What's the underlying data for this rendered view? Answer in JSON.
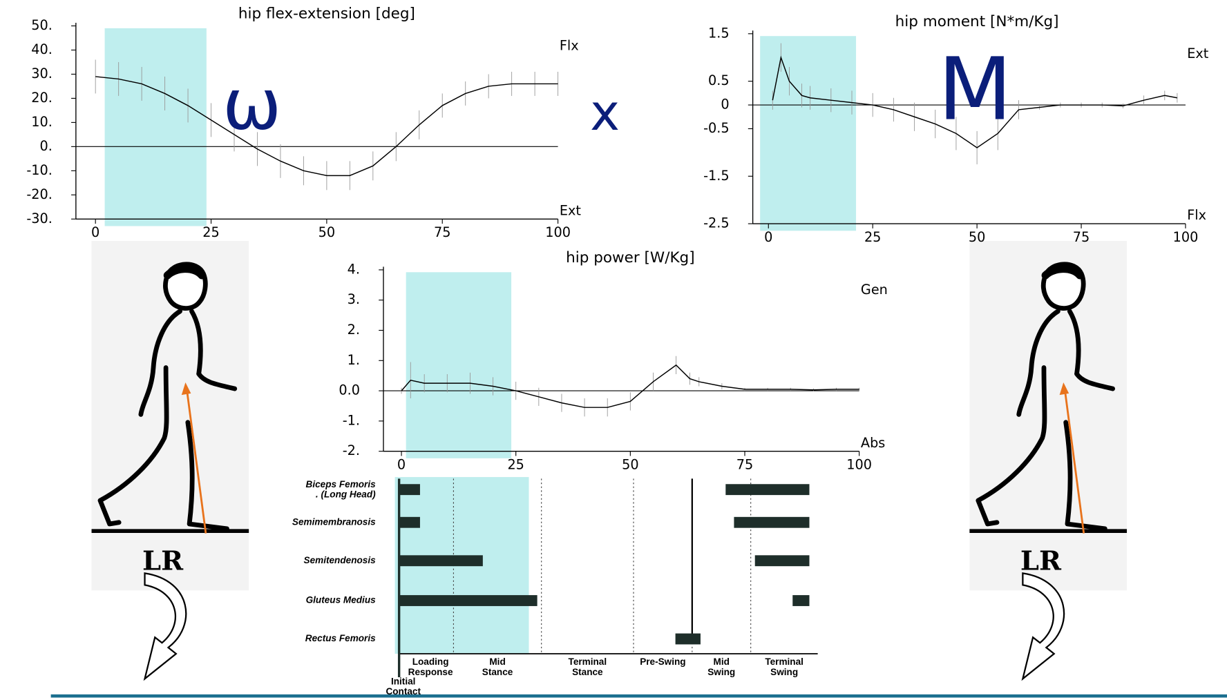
{
  "chart_data": [
    {
      "type": "line",
      "title": "hip flex-extension [deg]",
      "xlim": [
        0,
        100
      ],
      "ylim": [
        -30,
        50
      ],
      "xticks": [
        0,
        25,
        50,
        75,
        100
      ],
      "yticks": [
        {
          "value": 50,
          "label": "50."
        },
        {
          "value": 40,
          "label": "40."
        },
        {
          "value": 30,
          "label": "30."
        },
        {
          "value": 20,
          "label": "20."
        },
        {
          "value": 10,
          "label": "10."
        },
        {
          "value": 0,
          "label": "0."
        },
        {
          "value": -10,
          "label": "-10."
        },
        {
          "value": -20,
          "label": "-20."
        },
        {
          "value": -30,
          "label": "-30."
        }
      ],
      "x": [
        0,
        5,
        10,
        15,
        20,
        25,
        30,
        35,
        40,
        45,
        50,
        55,
        60,
        65,
        70,
        75,
        80,
        85,
        90,
        95,
        100
      ],
      "series": [
        {
          "color": "#000000",
          "values": [
            29,
            28,
            26,
            22,
            17,
            11,
            5,
            -1,
            -6,
            -10,
            -12,
            -12,
            -8,
            0,
            9,
            17,
            22,
            25,
            26,
            26,
            26
          ],
          "errors": [
            7,
            7,
            7,
            7,
            7,
            7,
            7,
            7,
            7,
            6,
            6,
            6,
            6,
            6,
            6,
            5,
            5,
            5,
            5,
            5,
            5
          ]
        }
      ],
      "highlight": [
        2,
        24
      ],
      "highlight_color": "#bfeeee",
      "label_top": "Flx",
      "label_bottom": "Ext"
    },
    {
      "type": "line",
      "title": "hip moment [N*m/Kg]",
      "xlim": [
        0,
        100
      ],
      "ylim": [
        -2.5,
        1.5
      ],
      "xticks": [
        0,
        25,
        50,
        75,
        100
      ],
      "yticks": [
        1.5,
        0.5,
        0,
        -0.5,
        -1.5,
        -2.5
      ],
      "x": [
        1,
        3,
        5,
        8,
        10,
        15,
        20,
        25,
        30,
        35,
        40,
        45,
        50,
        55,
        60,
        65,
        70,
        75,
        80,
        85,
        90,
        95,
        98
      ],
      "series": [
        {
          "color": "#000000",
          "values": [
            0.1,
            1.0,
            0.5,
            0.2,
            0.15,
            0.1,
            0.05,
            0,
            -0.1,
            -0.25,
            -0.4,
            -0.6,
            -0.9,
            -0.6,
            -0.1,
            -0.05,
            0,
            0,
            0,
            -0.02,
            0.1,
            0.2,
            0.15
          ],
          "errors": [
            0.2,
            0.3,
            0.3,
            0.25,
            0.25,
            0.25,
            0.25,
            0.25,
            0.25,
            0.3,
            0.3,
            0.35,
            0.35,
            0.35,
            0.2,
            0.05,
            0.05,
            0.05,
            0.05,
            0.05,
            0.1,
            0.1,
            0.1
          ]
        }
      ],
      "highlight": [
        -2,
        21
      ],
      "highlight_color": "#bfeeee",
      "label_top": "Ext",
      "label_bottom": "Flx"
    },
    {
      "type": "line",
      "title": "hip power [W/Kg]",
      "xlim": [
        0,
        100
      ],
      "ylim": [
        -2,
        4
      ],
      "xticks": [
        0,
        25,
        50,
        75,
        100
      ],
      "yticks": [
        {
          "value": 4,
          "label": "4."
        },
        {
          "value": 3,
          "label": "3."
        },
        {
          "value": 2,
          "label": "2."
        },
        {
          "value": 1,
          "label": "1."
        },
        {
          "value": 0,
          "label": "0.0"
        },
        {
          "value": -1,
          "label": "-1."
        },
        {
          "value": -2,
          "label": "-2."
        }
      ],
      "x": [
        0,
        2,
        5,
        10,
        15,
        20,
        25,
        30,
        35,
        40,
        45,
        50,
        55,
        60,
        63,
        65,
        70,
        75,
        80,
        85,
        90,
        95,
        100
      ],
      "series": [
        {
          "color": "#000000",
          "values": [
            0,
            0.35,
            0.25,
            0.25,
            0.25,
            0.15,
            0,
            -0.2,
            -0.4,
            -0.55,
            -0.55,
            -0.35,
            0.3,
            0.85,
            0.4,
            0.3,
            0.15,
            0.05,
            0.05,
            0.05,
            0.03,
            0.05,
            0.05
          ],
          "errors": [
            0.1,
            0.6,
            0.3,
            0.3,
            0.35,
            0.3,
            0.3,
            0.3,
            0.3,
            0.3,
            0.3,
            0.3,
            0.3,
            0.3,
            0.2,
            0.15,
            0.1,
            0.05,
            0.05,
            0.05,
            0.05,
            0.05,
            0.05
          ]
        }
      ],
      "highlight": [
        1,
        24
      ],
      "highlight_color": "#bfeeee",
      "label_top": "Gen",
      "label_bottom": "Abs"
    },
    {
      "type": "gantt",
      "xlim": [
        0,
        100
      ],
      "rows": [
        {
          "name": [
            "Biceps Femoris",
            ". (Long Head)"
          ],
          "intervals": [
            [
              0,
              5
            ],
            [
              78,
              98
            ]
          ]
        },
        {
          "name": [
            "Semimembranosis"
          ],
          "intervals": [
            [
              0,
              5
            ],
            [
              80,
              98
            ]
          ]
        },
        {
          "name": [
            "Semitendenosis"
          ],
          "intervals": [
            [
              0,
              20
            ],
            [
              85,
              98
            ]
          ]
        },
        {
          "name": [
            "Gluteus Medius"
          ],
          "intervals": [
            [
              0,
              33
            ],
            [
              94,
              98
            ]
          ]
        },
        {
          "name": [
            "Rectus Femoris"
          ],
          "intervals": [
            [
              66,
              72
            ]
          ]
        }
      ],
      "phases": [
        {
          "label": [
            "Initial",
            "Contact"
          ],
          "start": 0,
          "end": 2
        },
        {
          "label": [
            "Loading",
            "Response"
          ],
          "start": 2,
          "end": 13
        },
        {
          "label": [
            "Mid",
            "Stance"
          ],
          "start": 13,
          "end": 34
        },
        {
          "label": [
            "Terminal",
            "Stance"
          ],
          "start": 34,
          "end": 56
        },
        {
          "label": [
            "Pre-Swing"
          ],
          "start": 56,
          "end": 70
        },
        {
          "label": [
            "Mid",
            "Swing"
          ],
          "start": 70,
          "end": 84
        },
        {
          "label": [
            "Terminal",
            "Swing"
          ],
          "start": 84,
          "end": 100
        }
      ],
      "marker": 70,
      "highlight": [
        -1,
        31
      ],
      "highlight_color": "#bfeeee",
      "color": "#1e2e2a"
    }
  ],
  "symbols": {
    "angle": "ω",
    "times": "x",
    "moment": "M"
  },
  "figures": [
    {
      "label": "LR"
    },
    {
      "label": "LR"
    }
  ]
}
